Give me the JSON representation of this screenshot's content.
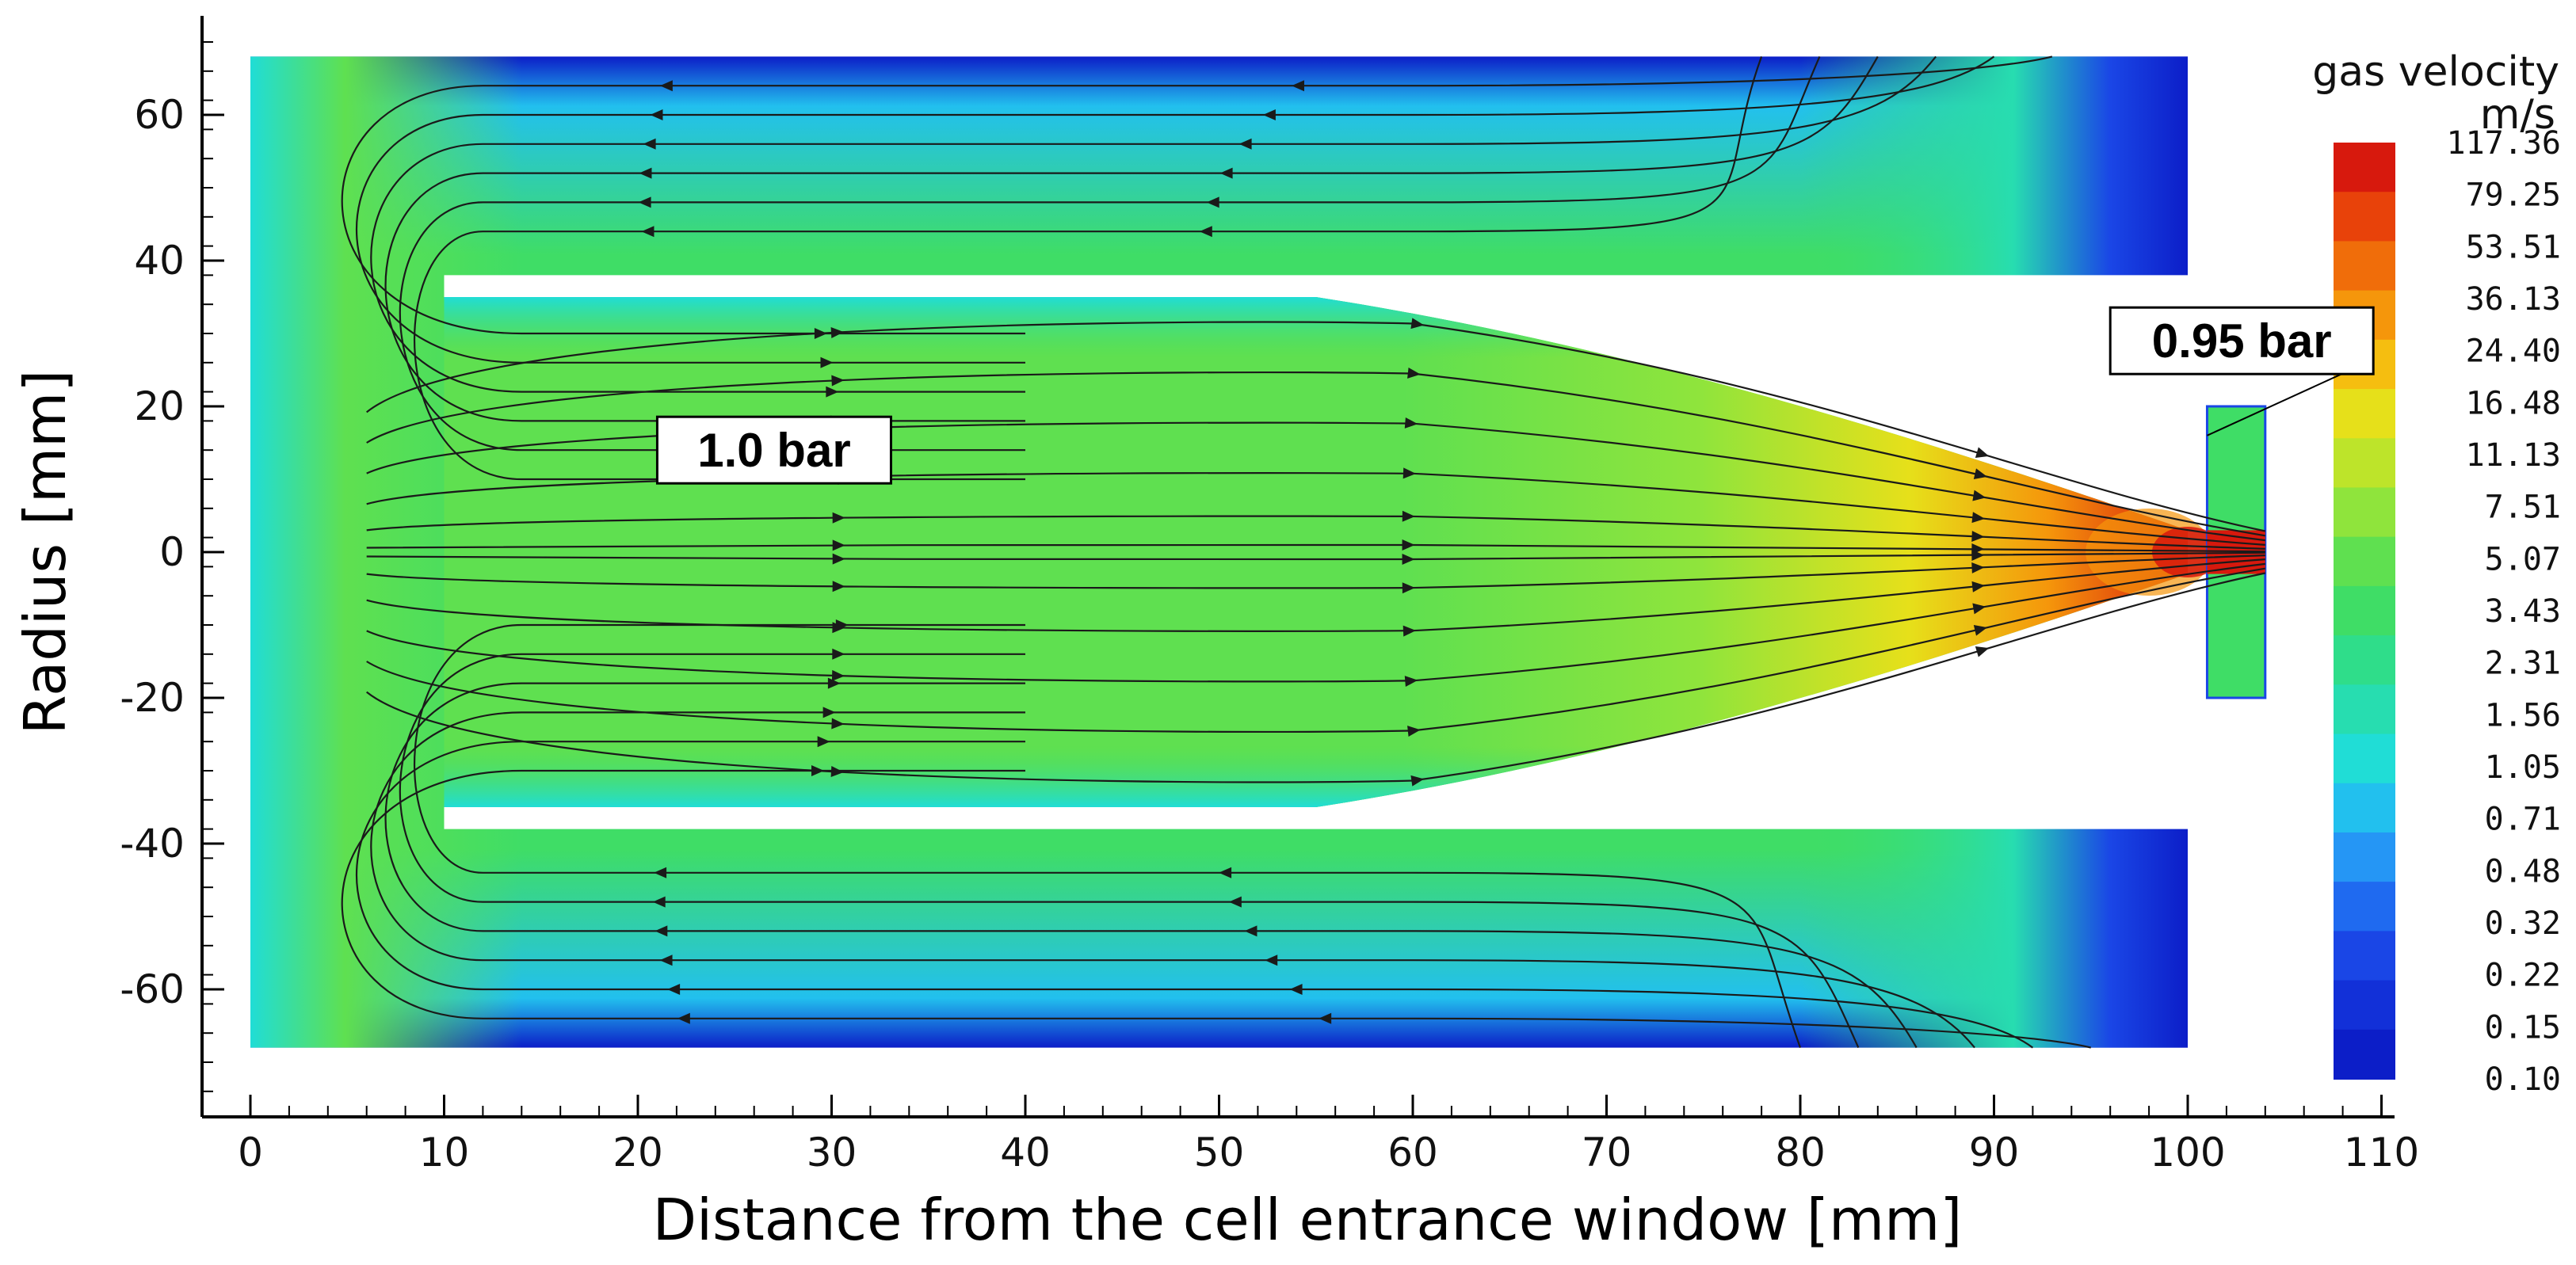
{
  "chart_data": {
    "type": "heatmap",
    "title": "",
    "xlabel": "Distance from the cell entrance window  [mm]",
    "ylabel": "Radius  [mm]",
    "xlim": [
      -2,
      111
    ],
    "ylim": [
      -74,
      75
    ],
    "x_ticks": [
      "0",
      "10",
      "20",
      "30",
      "40",
      "50",
      "60",
      "70",
      "80",
      "90",
      "100",
      "110"
    ],
    "y_ticks": [
      "60",
      "40",
      "20",
      "0",
      "-20",
      "-40",
      "-60"
    ],
    "colorbar": {
      "title": "gas velocity",
      "unit": "m/s",
      "levels": [
        "117.36",
        "79.25",
        "53.51",
        "36.13",
        "24.40",
        "16.48",
        "11.13",
        "7.51",
        "5.07",
        "3.43",
        "2.31",
        "1.56",
        "1.05",
        "0.71",
        "0.48",
        "0.32",
        "0.22",
        "0.15",
        "0.10"
      ],
      "colors": [
        "#d7190d",
        "#e8420a",
        "#f06d0a",
        "#f5960b",
        "#f5be10",
        "#e6e01a",
        "#bde42a",
        "#8fe43c",
        "#5fe050",
        "#3fdd66",
        "#2fdd8a",
        "#27ddb0",
        "#20ddd6",
        "#22c0ee",
        "#2596f5",
        "#1f6af0",
        "#1a46e6",
        "#1230d8",
        "#0c1ec8"
      ]
    },
    "annotations": [
      {
        "label": "1.0 bar",
        "x": 21,
        "y": 14
      },
      {
        "label": "0.95 bar",
        "x": 96,
        "y": 29,
        "arrow_to": {
          "x": 101,
          "y": 16
        }
      }
    ],
    "regions": {
      "outer_chamber": {
        "x": [
          0,
          100
        ],
        "y": [
          -68,
          68
        ]
      },
      "inner_walls": [
        {
          "x": [
            10,
            100
          ],
          "y": [
            36,
            38
          ]
        },
        {
          "x": [
            10,
            100
          ],
          "y": [
            -38,
            -36
          ]
        }
      ],
      "exit_nozzle": {
        "x": [
          101,
          104
        ],
        "y": [
          -20,
          20
        ]
      }
    },
    "colors": {
      "field_low": "#0c1ec8",
      "field_mid": "#3fdd66",
      "field_high": "#d7190d",
      "streamline": "#1a1a1a"
    }
  }
}
